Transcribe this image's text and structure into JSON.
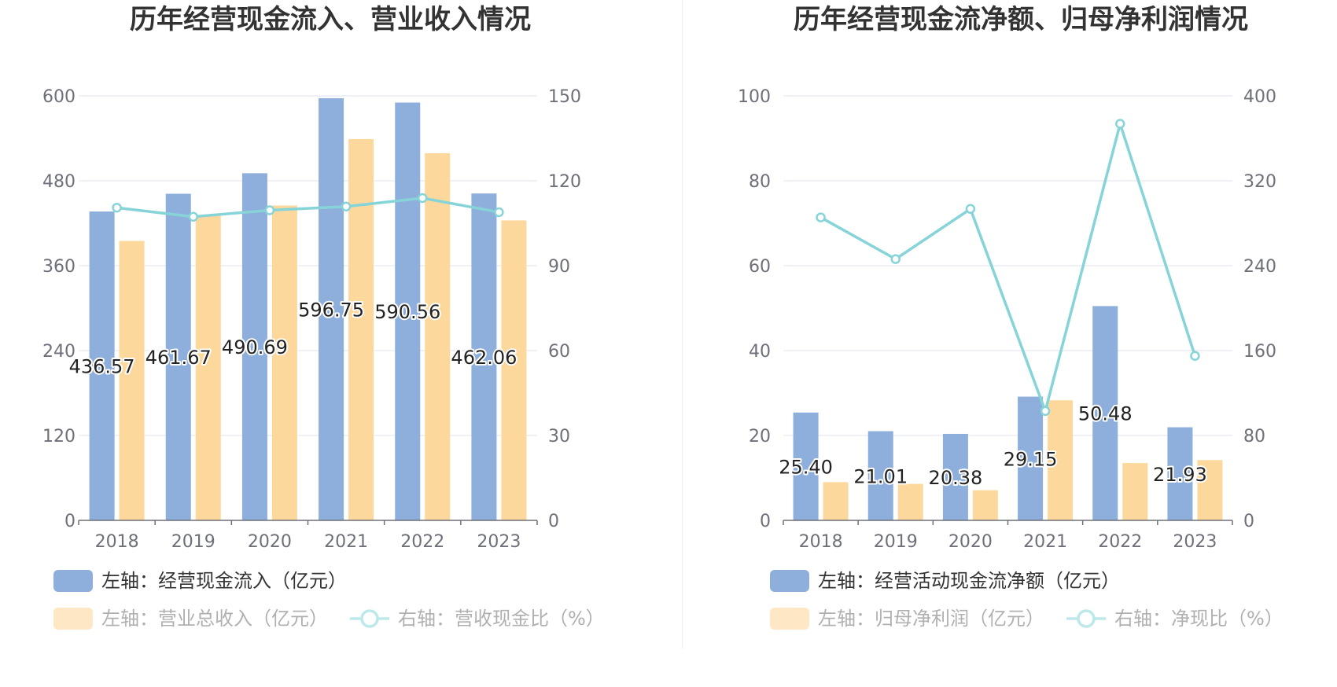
{
  "colors": {
    "bar1": "#8eaedb",
    "bar2": "#fdd89c",
    "line": "#86d4d8",
    "legend_bar2": "#fde7c4",
    "legend_line": "#bde8ea"
  },
  "chart_data": [
    {
      "type": "bar",
      "title": "历年经营现金流入、营业收入情况",
      "categories": [
        "2018",
        "2019",
        "2020",
        "2021",
        "2022",
        "2023"
      ],
      "ylim_left": [
        0,
        600
      ],
      "yticks_left": [
        "0",
        "120",
        "240",
        "360",
        "480",
        "600"
      ],
      "ylim_right": [
        0,
        150
      ],
      "yticks_right": [
        "0",
        "30",
        "60",
        "90",
        "120",
        "150"
      ],
      "grid": true,
      "series": [
        {
          "name": "左轴：经营现金流入（亿元）",
          "kind": "bar",
          "axis": "left",
          "values": [
            436.57,
            461.67,
            490.69,
            596.75,
            590.56,
            462.06
          ],
          "labels": [
            "436.57",
            "461.67",
            "490.69",
            "596.75",
            "590.56",
            "462.06"
          ]
        },
        {
          "name": "左轴：营业总收入（亿元）",
          "kind": "bar",
          "axis": "left",
          "values": [
            395,
            431,
            445,
            539,
            519,
            424
          ]
        },
        {
          "name": "右轴：营收现金比（%）",
          "kind": "line",
          "axis": "right",
          "values": [
            110.5,
            107.3,
            109.6,
            110.9,
            113.9,
            108.9
          ]
        }
      ]
    },
    {
      "type": "bar",
      "title": "历年经营现金流净额、归母净利润情况",
      "categories": [
        "2018",
        "2019",
        "2020",
        "2021",
        "2022",
        "2023"
      ],
      "ylim_left": [
        0,
        100
      ],
      "yticks_left": [
        "0",
        "20",
        "40",
        "60",
        "80",
        "100"
      ],
      "ylim_right": [
        0,
        400
      ],
      "yticks_right": [
        "0",
        "80",
        "160",
        "240",
        "320",
        "400"
      ],
      "grid": true,
      "series": [
        {
          "name": "左轴：经营活动现金流净额（亿元）",
          "kind": "bar",
          "axis": "left",
          "values": [
            25.4,
            21.01,
            20.38,
            29.15,
            50.48,
            21.93
          ],
          "labels": [
            "25.40",
            "21.01",
            "20.38",
            "29.15",
            "50.48",
            "21.93"
          ]
        },
        {
          "name": "左轴：归母净利润（亿元）",
          "kind": "bar",
          "axis": "left",
          "values": [
            9,
            8.6,
            7.1,
            28.3,
            13.5,
            14.2
          ]
        },
        {
          "name": "右轴：净现比（%）",
          "kind": "line",
          "axis": "right",
          "values": [
            285.5,
            246.2,
            293.5,
            103.1,
            373.7,
            155.0
          ]
        }
      ]
    }
  ]
}
